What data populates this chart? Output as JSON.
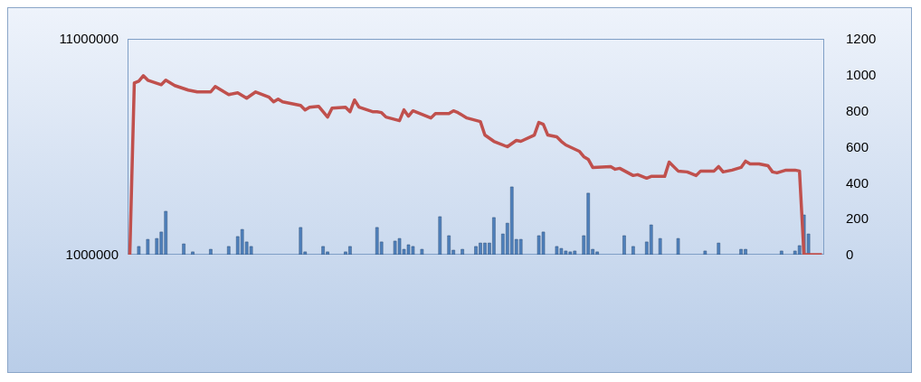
{
  "chart_data": {
    "type": "bar",
    "categories": [
      null,
      null,
      null,
      null,
      null,
      null,
      null,
      null,
      null,
      null,
      null,
      null,
      null,
      null,
      null,
      null,
      null,
      null,
      null,
      null,
      null,
      null,
      null,
      null,
      null,
      null,
      null,
      null,
      null,
      null,
      null,
      null,
      null,
      null,
      null,
      null,
      null,
      null,
      null,
      null,
      null,
      null,
      null,
      null,
      null,
      null,
      null,
      null,
      null,
      null,
      null,
      null,
      null,
      null,
      null,
      null,
      null,
      null,
      null,
      null,
      null,
      null,
      null,
      null,
      null,
      null,
      null,
      null,
      null,
      null,
      null,
      null,
      null,
      null,
      null,
      null,
      null,
      null,
      null,
      null,
      null,
      null,
      null,
      null,
      null,
      null,
      null,
      null,
      null,
      null,
      null,
      null,
      null,
      null,
      null,
      null,
      null,
      null,
      null,
      null,
      null,
      null,
      null,
      null,
      null,
      null,
      null,
      null,
      null,
      null,
      null,
      null,
      null,
      null,
      null,
      null,
      null,
      null,
      null,
      null,
      null,
      null,
      null,
      null,
      null,
      null,
      null,
      null,
      null,
      null,
      null,
      null,
      null,
      null,
      null,
      null,
      null,
      null,
      null,
      null,
      null,
      null,
      null,
      null,
      null,
      null,
      null,
      null,
      null,
      null,
      null,
      null,
      null,
      null,
      null
    ],
    "series": [
      {
        "color": "#4f81bd",
        "values": [
          null,
          null,
          1380000,
          null,
          1710000,
          null,
          1750000,
          2050000,
          3010000,
          null,
          null,
          null,
          1500000,
          null,
          1130000,
          null,
          null,
          null,
          1250000,
          null,
          null,
          null,
          1380000,
          null,
          1840000,
          2170000,
          1590000,
          1380000,
          null,
          null,
          null,
          null,
          null,
          null,
          null,
          null,
          null,
          null,
          2260000,
          1130000,
          null,
          null,
          null,
          1380000,
          1130000,
          null,
          null,
          null,
          1130000,
          1380000,
          null,
          null,
          null,
          null,
          null,
          2260000,
          1590000,
          null,
          null,
          1630000,
          1750000,
          1250000,
          1460000,
          1380000,
          null,
          1250000,
          null,
          null,
          null,
          2760000,
          null,
          1880000,
          1210000,
          null,
          1250000,
          null,
          null,
          1380000,
          1540000,
          1540000,
          1540000,
          2720000,
          null,
          1960000,
          2460000,
          4140000,
          1710000,
          1710000,
          null,
          null,
          null,
          1880000,
          2050000,
          null,
          null,
          1380000,
          1290000,
          1170000,
          1130000,
          1170000,
          null,
          1880000,
          3850000,
          1250000,
          1130000,
          null,
          null,
          null,
          null,
          null,
          1880000,
          null,
          1380000,
          null,
          null,
          1590000,
          2380000,
          null,
          1750000,
          null,
          null,
          null,
          1750000,
          null,
          null,
          null,
          null,
          null,
          1170000,
          null,
          null,
          1540000,
          null,
          null,
          null,
          null,
          1250000,
          1250000,
          null,
          null,
          null,
          null,
          null,
          null,
          null,
          1170000,
          null,
          null,
          1170000,
          1420000,
          2840000,
          1960000,
          null,
          null,
          null
        ]
      },
      {
        "type": "line",
        "axis": "y2",
        "color": "#c0504d",
        "values": [
          0,
          955,
          965,
          995,
          970,
          null,
          null,
          945,
          970,
          null,
          940,
          null,
          null,
          915,
          null,
          905,
          null,
          null,
          905,
          935,
          null,
          null,
          890,
          null,
          900,
          null,
          870,
          null,
          905,
          null,
          null,
          875,
          850,
          865,
          850,
          null,
          null,
          null,
          830,
          805,
          820,
          null,
          825,
          null,
          765,
          815,
          null,
          null,
          820,
          795,
          860,
          820,
          null,
          null,
          795,
          795,
          790,
          765,
          null,
          null,
          745,
          805,
          770,
          800,
          null,
          780,
          null,
          760,
          785,
          null,
          null,
          785,
          800,
          790,
          null,
          760,
          null,
          null,
          740,
          665,
          null,
          630,
          null,
          null,
          600,
          null,
          635,
          630,
          null,
          null,
          665,
          735,
          725,
          665,
          null,
          655,
          630,
          610,
          null,
          null,
          575,
          545,
          530,
          485,
          null,
          null,
          null,
          490,
          475,
          480,
          null,
          null,
          440,
          445,
          null,
          425,
          435,
          null,
          null,
          435,
          515,
          null,
          465,
          null,
          460,
          null,
          440,
          465,
          null,
          null,
          465,
          490,
          460,
          null,
          470,
          null,
          485,
          520,
          505,
          null,
          505,
          null,
          495,
          460,
          455,
          null,
          470,
          null,
          470,
          465,
          0,
          null,
          null,
          null,
          0
        ]
      }
    ],
    "ylim": [
      1000000,
      11000000
    ],
    "yticks": [
      1000000,
      11000000
    ],
    "y2lim": [
      0,
      1200
    ],
    "y2ticks": [
      0,
      200,
      400,
      600,
      800,
      1000,
      1200
    ]
  }
}
